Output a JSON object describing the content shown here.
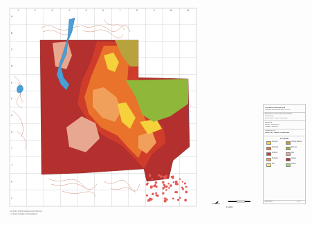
{
  "colors": {
    "dark_red": "#b3302e",
    "red": "#cf3d2a",
    "orange": "#e9732b",
    "light_orange": "#f0a05a",
    "yellow": "#f5d23b",
    "olive": "#b8a23c",
    "green": "#8fb83a",
    "pink": "#e8a88f",
    "blue": "#4a9fd6",
    "contour": "#d38a76",
    "grid": "#bdbdbd"
  },
  "grid": {
    "column_labels": [
      "1",
      "2",
      "3",
      "4",
      "5",
      "6",
      "7",
      "8",
      "9",
      "10",
      "11"
    ],
    "row_labels": [
      "A",
      "B",
      "C",
      "D",
      "E",
      "F",
      "G",
      "H",
      "I",
      "J",
      "K",
      "L"
    ]
  },
  "title_block": {
    "line1": "ISTANBUL UNIVERSITESI",
    "line2": "ORMAN FAKULTESI ENSTITUSU",
    "line3": "MESLEKI UYGULAMA CALISMASI",
    "line4": "PLANLAMA",
    "line5": "BALIKESIR YAMAC BOLGESI",
    "line6": "JEOLOJI",
    "line7": "ARAZI CALISMASI",
    "line8": "OLCEK: 1/10 000",
    "line9": "HAZIRLAYAN",
    "line10": "PROF. DR. YAMAC PLANLAMA"
  },
  "legend": {
    "title": "LEJAND",
    "items": [
      {
        "label": "Alüvyon",
        "color": "#f5d23b"
      },
      {
        "label": "Yamaç Molozu",
        "color": "#b8a23c"
      },
      {
        "label": "Kireçtaşı",
        "color": "#e9732b"
      },
      {
        "label": "Mermer",
        "color": "#8fb83a"
      },
      {
        "label": "Andezit",
        "color": "#cf3d2a"
      },
      {
        "label": "Şist",
        "color": "#e8a88f"
      },
      {
        "label": "Kumtaşı",
        "color": "#f0a05a"
      },
      {
        "label": "Gnays",
        "color": "#b3302e"
      },
      {
        "label": "Fliş",
        "color": "#f7ec6a"
      },
      {
        "label": "Granit",
        "color": "#a8d070"
      }
    ]
  },
  "panel_footer": {
    "left": "IMZALAR",
    "right": "2015"
  },
  "scale_label": "1:10000",
  "footer": {
    "line1": "KAYNAK: HARITA GENEL KOMUTANLIGI",
    "line2": "1 / 25 000 OLCEKLI TOPOGRAFYA"
  }
}
